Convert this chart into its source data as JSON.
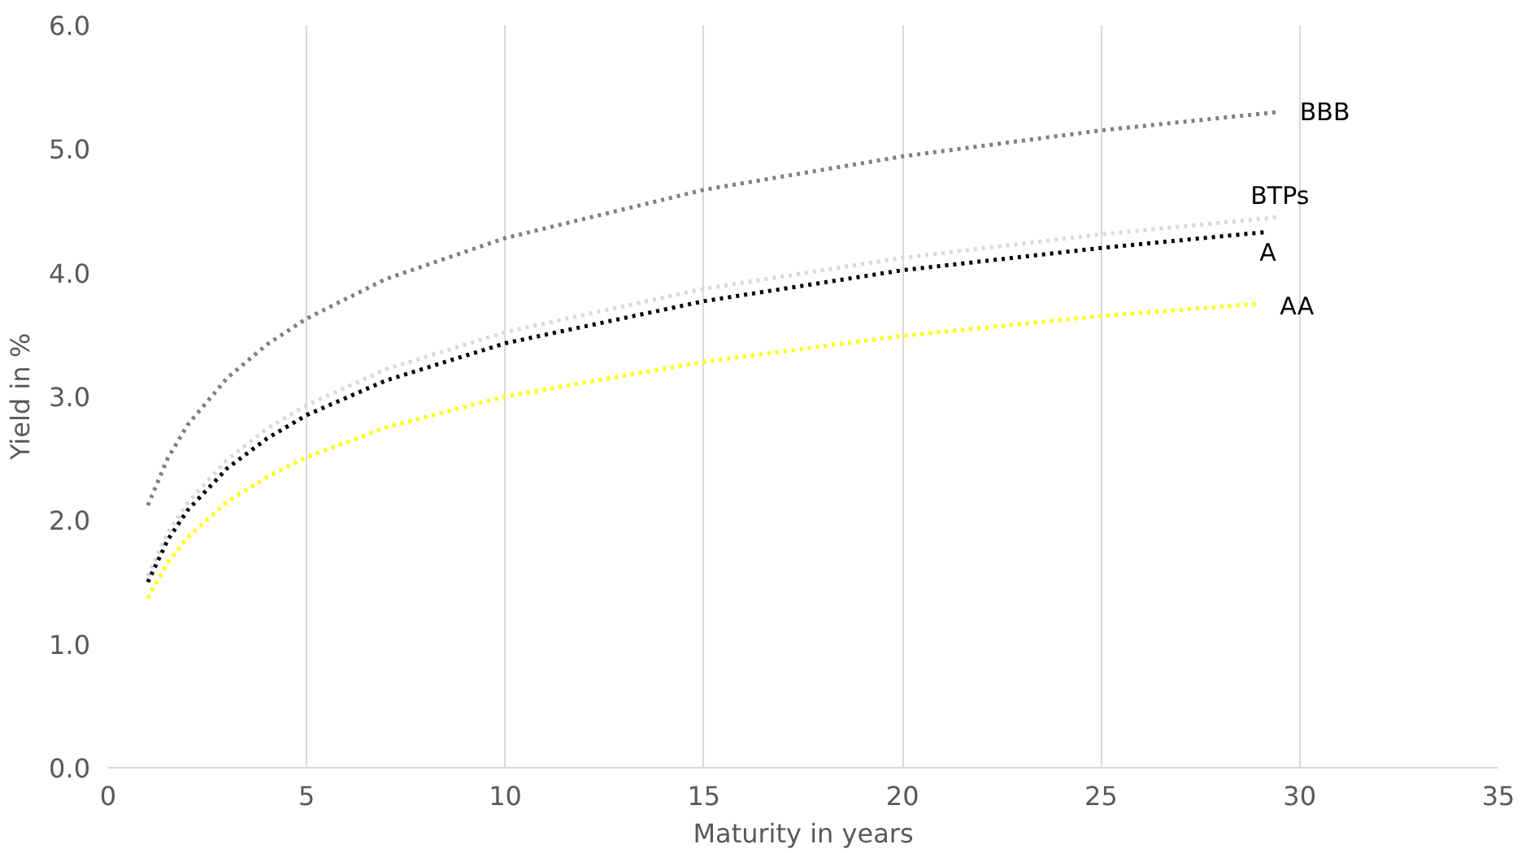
{
  "chart_data": {
    "type": "line",
    "xlabel": "Maturity in years",
    "ylabel": "Yield in %",
    "xlim": [
      0,
      35
    ],
    "xticks": [
      0,
      5,
      10,
      15,
      20,
      25,
      30,
      35
    ],
    "ylim": [
      0,
      6
    ],
    "yticks": [
      {
        "value": 0,
        "label": "0.0"
      },
      {
        "value": 1,
        "label": "1.0"
      },
      {
        "value": 2,
        "label": "2.0"
      },
      {
        "value": 3,
        "label": "3.0"
      },
      {
        "value": 4,
        "label": "4.0"
      },
      {
        "value": 5,
        "label": "5.0"
      },
      {
        "value": 6,
        "label": "6.0"
      }
    ],
    "grid": "x",
    "legend": false,
    "marker": "none",
    "line_style": "dotted",
    "series": [
      {
        "name": "BBB",
        "color": "#808080",
        "x": [
          1,
          1.5,
          2,
          3,
          4,
          5,
          7,
          10,
          15,
          20,
          25,
          29.5
        ],
        "values": [
          2.12,
          2.5,
          2.77,
          3.15,
          3.42,
          3.63,
          3.95,
          4.28,
          4.67,
          4.94,
          5.15,
          5.3
        ]
      },
      {
        "name": "BTPs",
        "color": "#d9d9d9",
        "x": [
          1,
          1.5,
          2,
          3,
          4,
          5,
          7,
          10,
          15,
          20,
          25,
          29.5
        ],
        "values": [
          1.55,
          1.9,
          2.14,
          2.49,
          2.74,
          2.93,
          3.22,
          3.52,
          3.87,
          4.12,
          4.31,
          4.45
        ]
      },
      {
        "name": "A",
        "color": "#000000",
        "x": [
          1,
          1.5,
          2,
          3,
          4,
          5,
          7,
          10,
          15,
          20,
          25,
          29.2
        ],
        "values": [
          1.5,
          1.84,
          2.08,
          2.42,
          2.66,
          2.85,
          3.13,
          3.43,
          3.77,
          4.02,
          4.2,
          4.33
        ]
      },
      {
        "name": "AA",
        "color": "#ffff00",
        "x": [
          1,
          1.5,
          2,
          3,
          4,
          5,
          7,
          10,
          15,
          20,
          25,
          29
        ],
        "values": [
          1.37,
          1.66,
          1.86,
          2.15,
          2.35,
          2.51,
          2.75,
          3.0,
          3.28,
          3.49,
          3.65,
          3.75
        ]
      }
    ]
  }
}
